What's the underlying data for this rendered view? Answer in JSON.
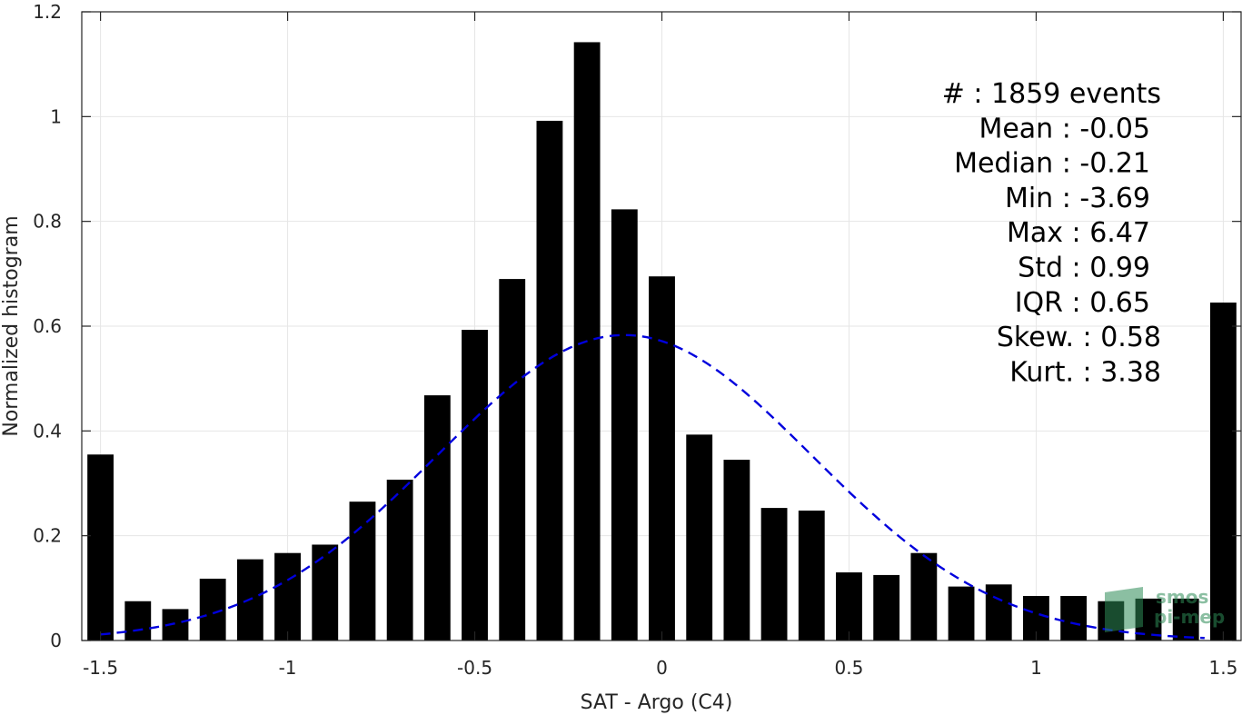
{
  "chart_data": {
    "type": "bar",
    "xlabel": "SAT - Argo (C4)",
    "ylabel": "Normalized histogram",
    "xlim": [
      -1.55,
      1.55
    ],
    "ylim": [
      0,
      1.2
    ],
    "xticks": [
      -1.5,
      -1,
      -0.5,
      0,
      0.5,
      1,
      1.5
    ],
    "xtick_labels": [
      "-1.5",
      "-1",
      "-0.5",
      "0",
      "0.5",
      "1",
      "1.5"
    ],
    "yticks": [
      0,
      0.2,
      0.4,
      0.6,
      0.8,
      1,
      1.2
    ],
    "ytick_labels": [
      "0",
      "0.2",
      "0.4",
      "0.6",
      "0.8",
      "1",
      "1.2"
    ],
    "grid": true,
    "bar_color": "#000000",
    "bar_width": 0.07,
    "x": [
      -1.5,
      -1.4,
      -1.3,
      -1.2,
      -1.1,
      -1.0,
      -0.9,
      -0.8,
      -0.7,
      -0.6,
      -0.5,
      -0.4,
      -0.3,
      -0.2,
      -0.1,
      0.0,
      0.1,
      0.2,
      0.3,
      0.4,
      0.5,
      0.6,
      0.7,
      0.8,
      0.9,
      1.0,
      1.1,
      1.2,
      1.3,
      1.4,
      1.5
    ],
    "values": [
      0.355,
      0.075,
      0.06,
      0.118,
      0.155,
      0.167,
      0.183,
      0.265,
      0.307,
      0.468,
      0.593,
      0.69,
      0.992,
      1.142,
      0.823,
      0.695,
      0.393,
      0.345,
      0.253,
      0.248,
      0.13,
      0.125,
      0.167,
      0.103,
      0.107,
      0.085,
      0.085,
      0.075,
      0.08,
      0.08,
      0.645
    ],
    "fit": {
      "type": "normal",
      "line_style": "dashed",
      "color": "#0000dd",
      "mean": -0.1,
      "std": 0.5,
      "peak": 0.583,
      "x_range": [
        -1.5,
        1.45
      ]
    },
    "stats": [
      {
        "label": "#  : 1859 events",
        "indent": 0
      },
      {
        "label": "Mean : -0.05",
        "indent": 1
      },
      {
        "label": "Median : -0.21",
        "indent": 1
      },
      {
        "label": "Min : -3.69",
        "indent": 1
      },
      {
        "label": "Max : 6.47",
        "indent": 1
      },
      {
        "label": "Std : 0.99",
        "indent": 1
      },
      {
        "label": "IQR : 0.65",
        "indent": 1
      },
      {
        "label": "Skew. : 0.58",
        "indent": 0
      },
      {
        "label": "Kurt. : 3.38",
        "indent": 0
      }
    ]
  },
  "watermark": {
    "line1": "smos",
    "line2": "pi-mep",
    "color": "#2e8b57"
  }
}
